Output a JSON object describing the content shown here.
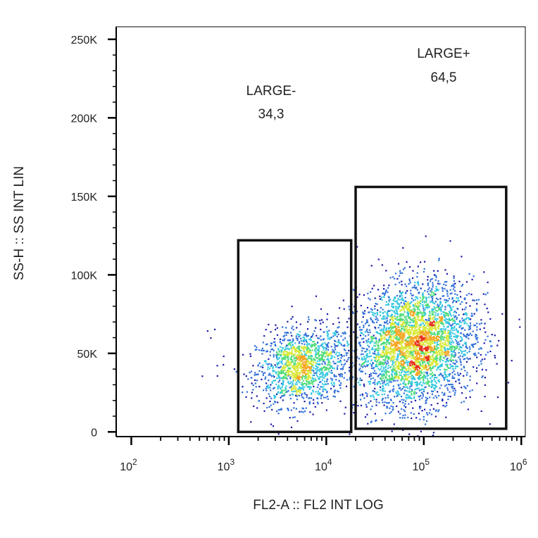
{
  "chart_data": {
    "type": "scatter",
    "subtype": "flow-cytometry-density-plot",
    "xlabel": "FL2-A :: FL2 INT LOG",
    "ylabel": "SS-H :: SS INT LIN",
    "x_scale": "log",
    "xlim": [
      70,
      1100000
    ],
    "ylim": [
      -3000,
      258000
    ],
    "x_ticks": [
      {
        "value": 100,
        "base": "10",
        "exp": "2"
      },
      {
        "value": 1000,
        "base": "10",
        "exp": "3"
      },
      {
        "value": 10000,
        "base": "10",
        "exp": "4"
      },
      {
        "value": 100000,
        "base": "10",
        "exp": "5"
      },
      {
        "value": 1000000,
        "base": "10",
        "exp": "6"
      }
    ],
    "y_ticks": [
      {
        "value": 0,
        "label": "0"
      },
      {
        "value": 50000,
        "label": "50K"
      },
      {
        "value": 100000,
        "label": "100K"
      },
      {
        "value": 150000,
        "label": "150K"
      },
      {
        "value": 200000,
        "label": "200K"
      },
      {
        "value": 250000,
        "label": "250K"
      }
    ],
    "grid": false,
    "colormap": [
      "#1a1aa8",
      "#2f6fd8",
      "#33c7e0",
      "#4fdc7a",
      "#d9e83a",
      "#f5a623",
      "#e8321e"
    ],
    "populations": [
      {
        "x_center": 5500,
        "y_center": 42000,
        "count": 1400,
        "log_sd_x": 0.23,
        "sd_y": 12000
      },
      {
        "x_center": 80000,
        "y_center": 56000,
        "count": 3600,
        "log_sd_x": 0.3,
        "sd_y": 19000
      }
    ],
    "gates": [
      {
        "name": "LARGE-",
        "value": "34,3",
        "x_range": [
          1250,
          18000
        ],
        "y_range": [
          0,
          122000
        ]
      },
      {
        "name": "LARGE+",
        "value": "64,5",
        "x_range": [
          20000,
          700000
        ],
        "y_range": [
          2000,
          156000
        ]
      }
    ]
  }
}
